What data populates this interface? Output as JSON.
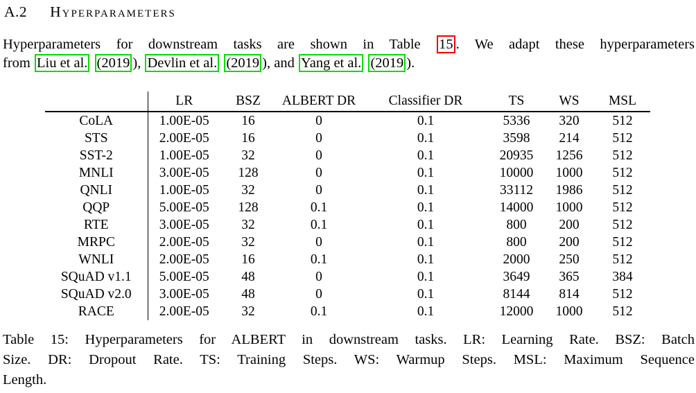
{
  "heading": {
    "number": "A.2",
    "title": "Hyperparameters"
  },
  "intro": {
    "line1_pre": "Hyperparameters for downstream tasks are shown in Table ",
    "table_ref": "15",
    "line1_post": ". We adapt these hyperparameters",
    "line2_segments": [
      {
        "text": "from "
      },
      {
        "text": "Liu et al.",
        "box": "green"
      },
      {
        "text": " "
      },
      {
        "text": "(2019",
        "box": "green"
      },
      {
        "text": "), "
      },
      {
        "text": "Devlin et al.",
        "box": "green"
      },
      {
        "text": " "
      },
      {
        "text": "(2019",
        "box": "green"
      },
      {
        "text": "), and "
      },
      {
        "text": "Yang et al.",
        "box": "green"
      },
      {
        "text": " "
      },
      {
        "text": "(2019",
        "box": "green"
      },
      {
        "text": ")."
      }
    ]
  },
  "table": {
    "columns": [
      "",
      "LR",
      "BSZ",
      "ALBERT DR",
      "Classifier DR",
      "TS",
      "WS",
      "MSL"
    ],
    "rows": [
      {
        "task": "CoLA",
        "values": [
          "1.00E-05",
          "16",
          "0",
          "0.1",
          "5336",
          "320",
          "512"
        ]
      },
      {
        "task": "STS",
        "values": [
          "2.00E-05",
          "16",
          "0",
          "0.1",
          "3598",
          "214",
          "512"
        ]
      },
      {
        "task": "SST-2",
        "values": [
          "1.00E-05",
          "32",
          "0",
          "0.1",
          "20935",
          "1256",
          "512"
        ]
      },
      {
        "task": "MNLI",
        "values": [
          "3.00E-05",
          "128",
          "0",
          "0.1",
          "10000",
          "1000",
          "512"
        ]
      },
      {
        "task": "QNLI",
        "values": [
          "1.00E-05",
          "32",
          "0",
          "0.1",
          "33112",
          "1986",
          "512"
        ]
      },
      {
        "task": "QQP",
        "values": [
          "5.00E-05",
          "128",
          "0.1",
          "0.1",
          "14000",
          "1000",
          "512"
        ]
      },
      {
        "task": "RTE",
        "values": [
          "3.00E-05",
          "32",
          "0.1",
          "0.1",
          "800",
          "200",
          "512"
        ]
      },
      {
        "task": "MRPC",
        "values": [
          "2.00E-05",
          "32",
          "0",
          "0.1",
          "800",
          "200",
          "512"
        ]
      },
      {
        "task": "WNLI",
        "values": [
          "2.00E-05",
          "16",
          "0.1",
          "0.1",
          "2000",
          "250",
          "512"
        ]
      },
      {
        "task": "SQuAD v1.1",
        "values": [
          "5.00E-05",
          "48",
          "0",
          "0.1",
          "3649",
          "365",
          "384"
        ]
      },
      {
        "task": "SQuAD v2.0",
        "values": [
          "3.00E-05",
          "48",
          "0",
          "0.1",
          "8144",
          "814",
          "512"
        ]
      },
      {
        "task": "RACE",
        "values": [
          "2.00E-05",
          "32",
          "0.1",
          "0.1",
          "12000",
          "1000",
          "512"
        ]
      }
    ]
  },
  "caption": {
    "lines": [
      "Table 15: Hyperparameters for ALBERT in downstream tasks. LR: Learning Rate. BSZ: Batch",
      "Size. DR: Dropout Rate. TS: Training Steps. WS: Warmup Steps. MSL: Maximum Sequence",
      "Length."
    ]
  },
  "colors": {
    "text": "#000000",
    "background": "#ffffff",
    "citation_box": "#00dd00",
    "reference_box": "#ee0000"
  }
}
